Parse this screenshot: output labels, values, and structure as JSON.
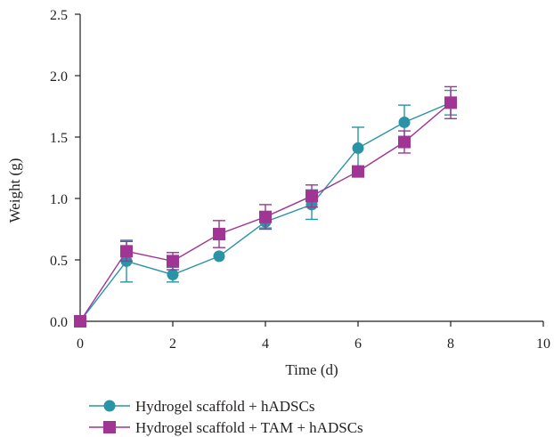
{
  "chart_data": {
    "type": "line",
    "title": "",
    "xlabel": "Time (d)",
    "ylabel": "Weight (g)",
    "xlim": [
      0,
      10
    ],
    "ylim": [
      0,
      2.5
    ],
    "x_ticks": [
      "0",
      "2",
      "4",
      "6",
      "8",
      "10"
    ],
    "y_ticks": [
      "0.0",
      "0.5",
      "1.0",
      "1.5",
      "2.0",
      "2.5"
    ],
    "grid": false,
    "legend_position": "bottom-left",
    "series": [
      {
        "name": "Hydrogel scaffold + hADSCs",
        "marker": "circle",
        "color": "#2a93a5",
        "x": [
          0,
          1,
          2,
          3,
          4,
          5,
          6,
          7,
          8
        ],
        "y": [
          0.0,
          0.49,
          0.38,
          0.53,
          0.81,
          0.95,
          1.41,
          1.62,
          1.78
        ],
        "error": [
          0,
          0.17,
          0.06,
          0,
          0.05,
          0.12,
          0.17,
          0.14,
          0.1
        ]
      },
      {
        "name": "Hydrogel scaffold + TAM + hADSCs",
        "marker": "square",
        "color": "#a03594",
        "x": [
          0,
          1,
          2,
          3,
          4,
          5,
          6,
          7,
          8
        ],
        "y": [
          0.0,
          0.57,
          0.49,
          0.71,
          0.85,
          1.02,
          1.22,
          1.46,
          1.78
        ],
        "error": [
          0,
          0.08,
          0.07,
          0.11,
          0.1,
          0.09,
          0,
          0.09,
          0.13
        ]
      }
    ]
  }
}
